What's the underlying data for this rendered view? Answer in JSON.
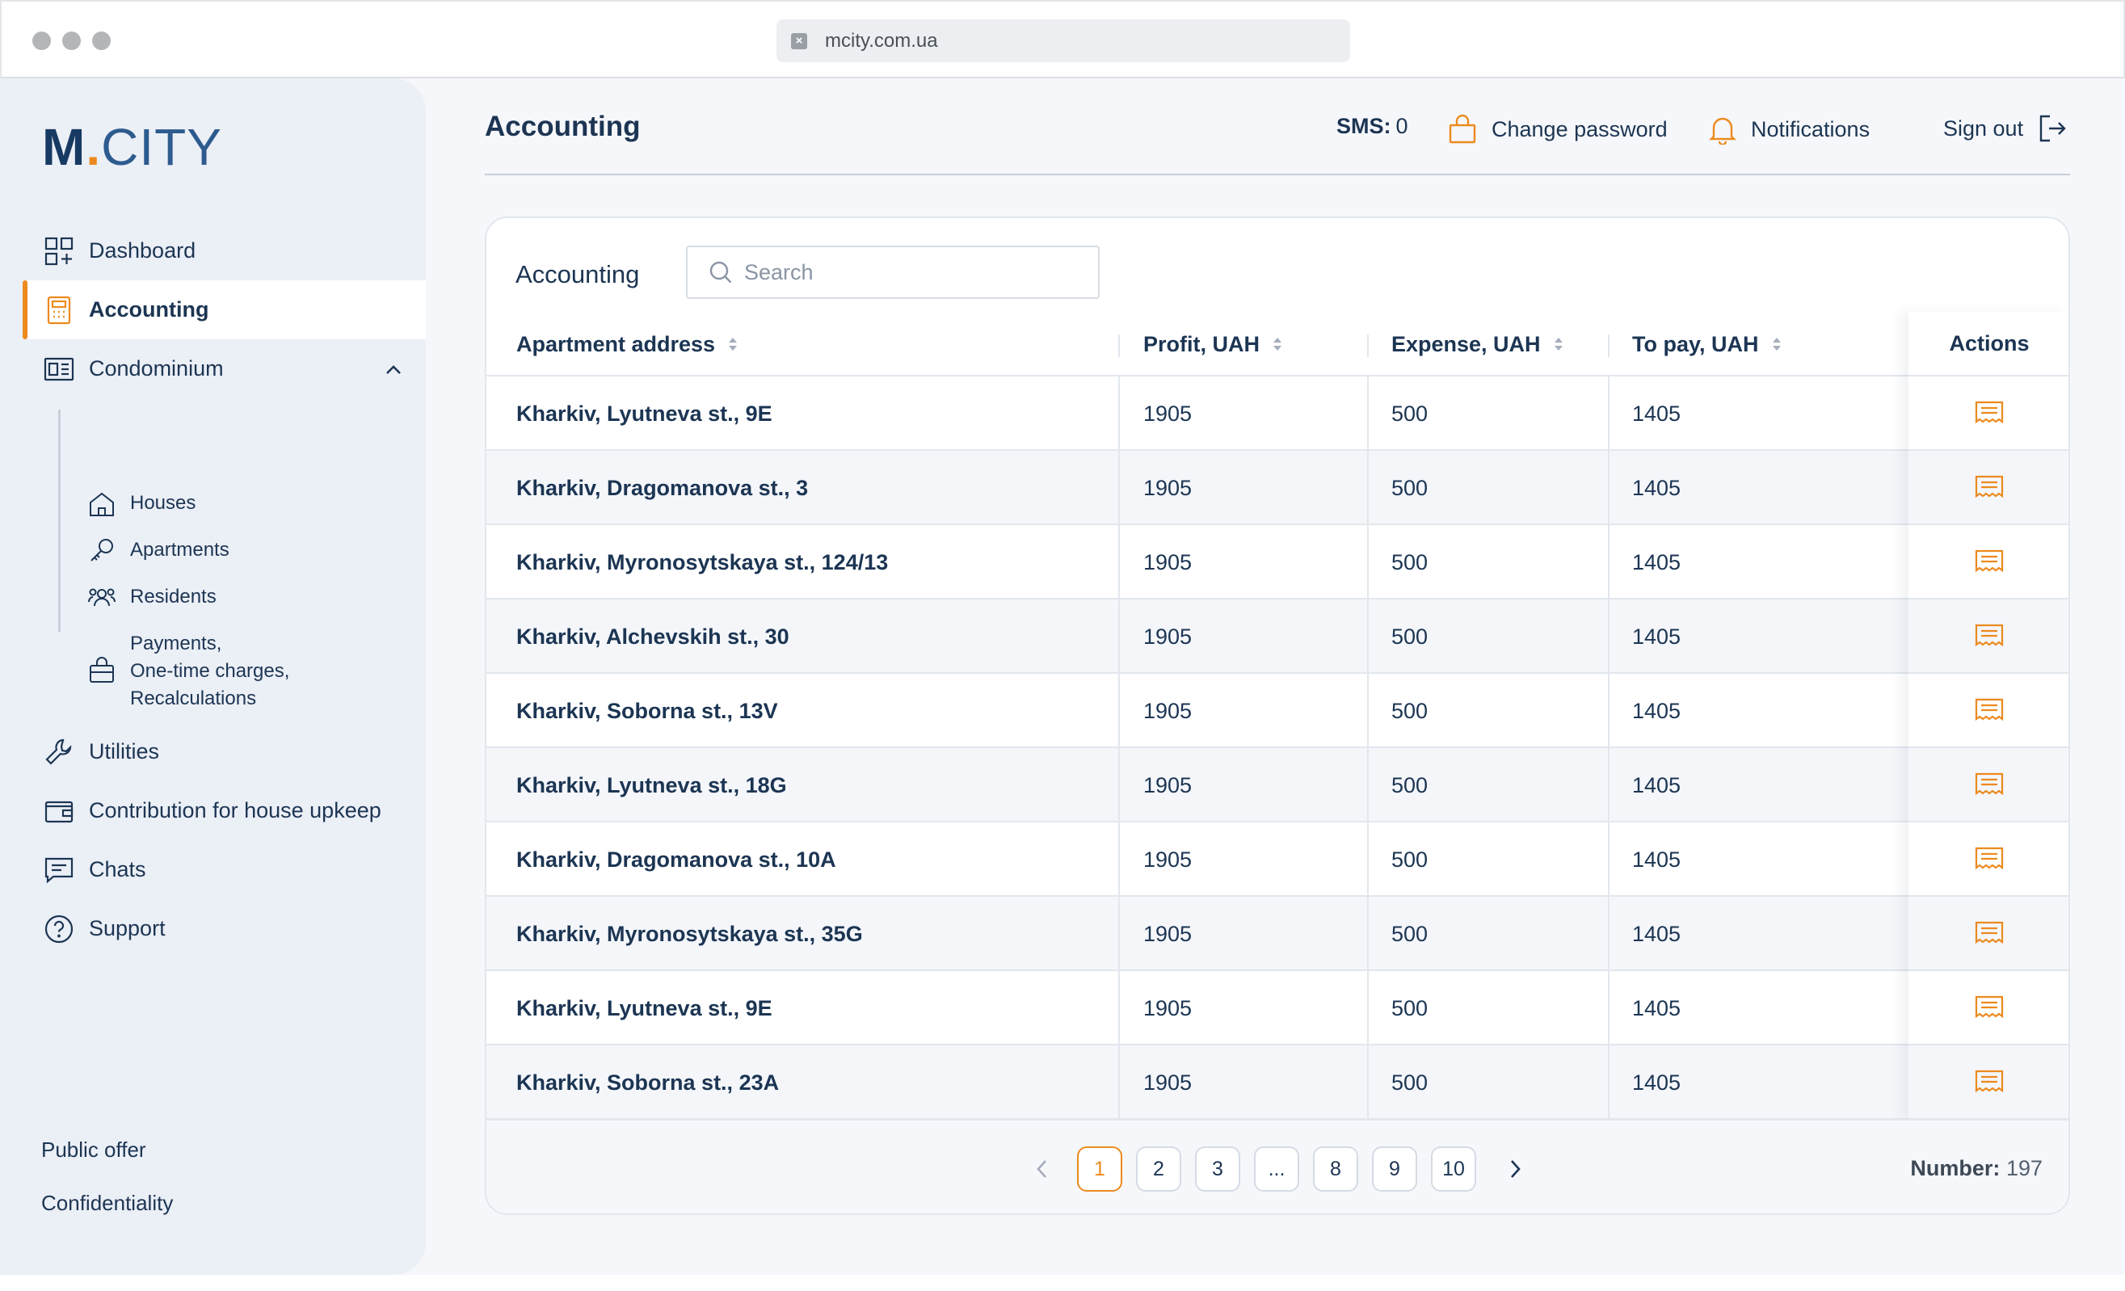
{
  "browser": {
    "url": "mcity.com.ua"
  },
  "brand": {
    "m": "M",
    "dot": ".",
    "city": "CITY",
    "accent": "#ec8a1e",
    "primary": "#1c3553"
  },
  "sidebar": {
    "items": [
      {
        "label": "Dashboard",
        "icon": "dashboard-icon"
      },
      {
        "label": "Accounting",
        "icon": "calculator-icon",
        "active": true
      },
      {
        "label": "Condominium",
        "icon": "building-card-icon",
        "expanded": true
      },
      {
        "label": "Utilities",
        "icon": "wrench-icon"
      },
      {
        "label": "Contribution for house upkeep",
        "icon": "wallet-icon"
      },
      {
        "label": "Chats",
        "icon": "chat-icon"
      },
      {
        "label": "Support",
        "icon": "help-icon"
      }
    ],
    "sub_items": [
      {
        "label": "Houses",
        "icon": "house-icon"
      },
      {
        "label": "Apartments",
        "icon": "key-icon"
      },
      {
        "label": "Residents",
        "icon": "users-icon"
      },
      {
        "label": "Payments,\nOne-time charges,\nRecalculations",
        "icon": "bag-icon"
      }
    ],
    "footer": [
      "Public offer",
      "Confidentiality"
    ]
  },
  "header": {
    "title": "Accounting",
    "sms_label": "SMS:",
    "sms_value": "0",
    "change_password": "Change password",
    "notifications": "Notifications",
    "sign_out": "Sign out"
  },
  "card": {
    "title": "Accounting",
    "search_placeholder": "Search",
    "columns": [
      "Apartment address",
      "Profit, UAH",
      "Expense, UAH",
      "To pay, UAH",
      "Actions"
    ],
    "rows": [
      {
        "address": "Kharkiv, Lyutneva st., 9E",
        "profit": "1905",
        "expense": "500",
        "to_pay": "1405"
      },
      {
        "address": "Kharkiv, Dragomanova st., 3",
        "profit": "1905",
        "expense": "500",
        "to_pay": "1405"
      },
      {
        "address": "Kharkiv, Myronosytskaya st., 124/13",
        "profit": "1905",
        "expense": "500",
        "to_pay": "1405"
      },
      {
        "address": "Kharkiv, Alchevskih st., 30",
        "profit": "1905",
        "expense": "500",
        "to_pay": "1405"
      },
      {
        "address": "Kharkiv, Soborna st., 13V",
        "profit": "1905",
        "expense": "500",
        "to_pay": "1405"
      },
      {
        "address": "Kharkiv, Lyutneva st., 18G",
        "profit": "1905",
        "expense": "500",
        "to_pay": "1405"
      },
      {
        "address": "Kharkiv, Dragomanova st., 10A",
        "profit": "1905",
        "expense": "500",
        "to_pay": "1405"
      },
      {
        "address": "Kharkiv, Myronosytskaya st., 35G",
        "profit": "1905",
        "expense": "500",
        "to_pay": "1405"
      },
      {
        "address": "Kharkiv, Lyutneva st., 9E",
        "profit": "1905",
        "expense": "500",
        "to_pay": "1405"
      },
      {
        "address": "Kharkiv, Soborna st., 23A",
        "profit": "1905",
        "expense": "500",
        "to_pay": "1405"
      }
    ]
  },
  "pagination": {
    "pages": [
      "1",
      "2",
      "3",
      "...",
      "8",
      "9",
      "10"
    ],
    "current": "1",
    "count_label": "Number:",
    "count_value": "197"
  }
}
